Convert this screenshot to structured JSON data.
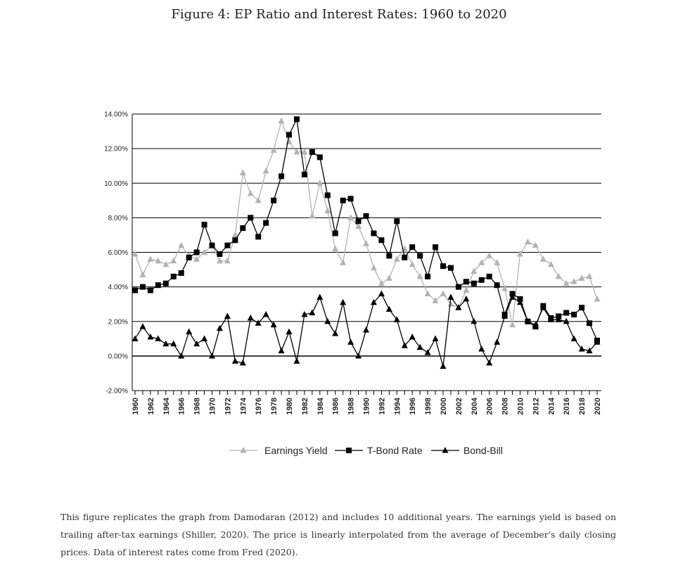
{
  "figure": {
    "title": "Figure 4: EP Ratio and Interest Rates: 1960 to 2020",
    "caption": "This figure replicates the graph from Damodaran (2012) and includes 10 additional years. The earnings yield is based on trailing after-tax earnings (Shiller, 2020). The price is linearly interpolated from the average of December's daily closing prices. Data of interest rates come from Fred (2020)."
  },
  "chart_data": {
    "type": "line",
    "title": "",
    "xlabel": "",
    "ylabel": "",
    "ylim": [
      -2,
      14
    ],
    "y_ticks": [
      "-2.00%",
      "0.00%",
      "2.00%",
      "4.00%",
      "6.00%",
      "8.00%",
      "10.00%",
      "12.00%",
      "14.00%"
    ],
    "y_tick_values": [
      -2,
      0,
      2,
      4,
      6,
      8,
      10,
      12,
      14
    ],
    "x_ticks": [
      "1960",
      "1962",
      "1964",
      "1966",
      "1968",
      "1970",
      "1972",
      "1974",
      "1976",
      "1978",
      "1980",
      "1982",
      "1984",
      "1986",
      "1988",
      "1990",
      "1992",
      "1994",
      "1996",
      "1998",
      "2000",
      "2002",
      "2004",
      "2006",
      "2008",
      "2010",
      "2012",
      "2014",
      "2016",
      "2018",
      "2020"
    ],
    "x": [
      1960,
      1961,
      1962,
      1963,
      1964,
      1965,
      1966,
      1967,
      1968,
      1969,
      1970,
      1971,
      1972,
      1973,
      1974,
      1975,
      1976,
      1977,
      1978,
      1979,
      1980,
      1981,
      1982,
      1983,
      1984,
      1985,
      1986,
      1987,
      1988,
      1989,
      1990,
      1991,
      1992,
      1993,
      1994,
      1995,
      1996,
      1997,
      1998,
      1999,
      2000,
      2001,
      2002,
      2003,
      2004,
      2005,
      2006,
      2007,
      2008,
      2009,
      2010,
      2011,
      2012,
      2013,
      2014,
      2015,
      2016,
      2017,
      2018,
      2019,
      2020
    ],
    "grid": "horizontal",
    "legend": "bottom",
    "series": [
      {
        "name": "Earnings Yield",
        "color": "#b3b3b3",
        "marker": "triangle",
        "values": [
          5.9,
          4.7,
          5.6,
          5.5,
          5.3,
          5.5,
          6.4,
          5.8,
          5.6,
          6.0,
          6.4,
          5.5,
          5.5,
          7.0,
          10.6,
          9.4,
          9.0,
          10.7,
          11.9,
          13.6,
          12.4,
          11.8,
          11.8,
          8.1,
          10.0,
          8.4,
          6.2,
          5.4,
          8.0,
          7.5,
          6.5,
          5.1,
          4.2,
          4.5,
          5.6,
          6.2,
          5.3,
          4.6,
          3.6,
          3.2,
          3.6,
          3.0,
          2.8,
          3.8,
          4.9,
          5.4,
          5.8,
          5.4,
          3.9,
          1.8,
          5.9,
          6.6,
          6.4,
          5.6,
          5.3,
          4.6,
          4.2,
          4.3,
          4.5,
          4.6,
          3.3
        ]
      },
      {
        "name": "T-Bond Rate",
        "color": "#000000",
        "marker": "square",
        "values": [
          3.8,
          4.0,
          3.8,
          4.1,
          4.2,
          4.6,
          4.8,
          5.7,
          6.0,
          7.6,
          6.4,
          5.9,
          6.4,
          6.7,
          7.4,
          8.0,
          6.9,
          7.7,
          9.0,
          10.4,
          12.8,
          13.7,
          10.5,
          11.8,
          11.5,
          9.3,
          7.1,
          9.0,
          9.1,
          7.8,
          8.1,
          7.1,
          6.7,
          5.8,
          7.8,
          5.7,
          6.3,
          5.8,
          4.6,
          6.3,
          5.2,
          5.1,
          4.0,
          4.3,
          4.2,
          4.4,
          4.6,
          4.1,
          2.4,
          3.6,
          3.3,
          2.0,
          1.7,
          2.9,
          2.2,
          2.3,
          2.5,
          2.4,
          2.8,
          1.9,
          0.9
        ]
      },
      {
        "name": "Bond-Bill",
        "color": "#000000",
        "marker": "triangle",
        "values": [
          1.0,
          1.7,
          1.1,
          1.0,
          0.7,
          0.7,
          0.0,
          1.4,
          0.7,
          1.0,
          0.0,
          1.6,
          2.3,
          -0.3,
          -0.4,
          2.2,
          1.9,
          2.4,
          1.8,
          0.3,
          1.4,
          -0.3,
          2.4,
          2.5,
          3.4,
          2.0,
          1.3,
          3.1,
          0.8,
          0.0,
          1.5,
          3.1,
          3.6,
          2.7,
          2.1,
          0.6,
          1.1,
          0.5,
          0.2,
          1.0,
          -0.6,
          3.4,
          2.8,
          3.3,
          2.0,
          0.4,
          -0.4,
          0.8,
          2.3,
          3.4,
          3.1,
          2.0,
          1.8,
          2.8,
          2.1,
          2.1,
          2.0,
          1.0,
          0.4,
          0.3,
          0.8
        ]
      }
    ]
  }
}
